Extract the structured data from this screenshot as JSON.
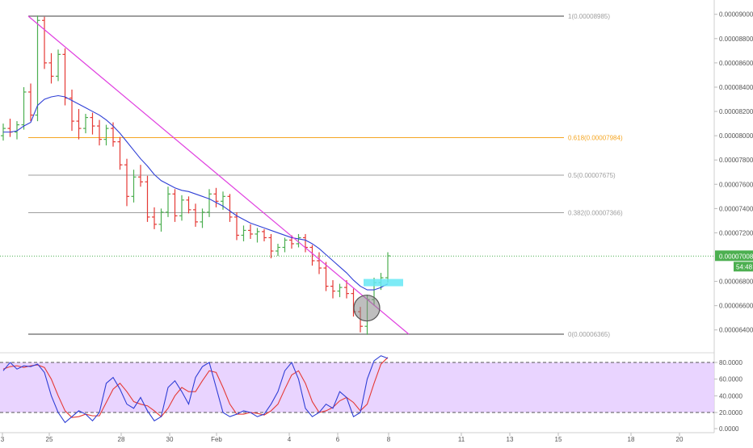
{
  "colors": {
    "up": "#4caf50",
    "down": "#e53935",
    "ma": "#2f3fd6",
    "trendline": "#e040e0",
    "fib": "#9e9e9e",
    "fib_highlight": "#f5a623",
    "price_line": "#4caf50",
    "price_badge": "#4caf50",
    "stoch_k": "#2f3fd6",
    "stoch_d": "#e53935",
    "stoch_band": "#e5ccff",
    "highlight_box": "#66e8f5",
    "circle": "#888888"
  },
  "price_axis": {
    "ticks": [
      "0.00009000",
      "0.00008800",
      "0.00008600",
      "0.00008400",
      "0.00008200",
      "0.00008000",
      "0.00007800",
      "0.00007600",
      "0.00007400",
      "0.00007200",
      "0.00006800",
      "0.00006600",
      "0.00006400"
    ],
    "current_price": "0.00007008",
    "countdown": "54:48"
  },
  "stoch_axis": {
    "ticks": [
      "80.0000",
      "60.0000",
      "40.0000",
      "20.0000",
      "0.0000"
    ]
  },
  "time_axis": {
    "labels": [
      "3",
      "25",
      "28",
      "30",
      "Feb",
      "4",
      "6",
      "8",
      "11",
      "13",
      "15",
      "18",
      "20"
    ]
  },
  "fib_levels": [
    {
      "ratio": 1,
      "label": "1(0.00008985)"
    },
    {
      "ratio": 0.618,
      "label": "0.618(0.00007984)"
    },
    {
      "ratio": 0.5,
      "label": "0.5(0.00007675)"
    },
    {
      "ratio": 0.382,
      "label": "0.382(0.00007366)"
    },
    {
      "ratio": 0,
      "label": "0(0.00006365)"
    }
  ],
  "chart_data": {
    "type": "candlestick",
    "series": [
      {
        "values": [
          [
            8e-05,
            8.1e-05,
            7.96e-05,
            8.06e-05
          ],
          [
            8.06e-05,
            8.14e-05,
            7.99e-05,
            8.03e-05
          ],
          [
            8.03e-05,
            8.12e-05,
            7.97e-05,
            8.09e-05
          ],
          [
            8.09e-05,
            8.4e-05,
            8.05e-05,
            8.36e-05
          ],
          [
            8.36e-05,
            8.43e-05,
            8.12e-05,
            8.17e-05
          ],
          [
            8.17e-05,
            8.99e-05,
            8.12e-05,
            8.95e-05
          ],
          [
            8.95e-05,
            8.98e-05,
            8.55e-05,
            8.6e-05
          ],
          [
            8.6e-05,
            8.68e-05,
            8.43e-05,
            8.49e-05
          ],
          [
            8.49e-05,
            8.71e-05,
            8.45e-05,
            8.67e-05
          ],
          [
            8.67e-05,
            8.72e-05,
            8.25e-05,
            8.31e-05
          ],
          [
            8.31e-05,
            8.38e-05,
            8.04e-05,
            8.12e-05
          ],
          [
            8.12e-05,
            8.22e-05,
            7.97e-05,
            8.06e-05
          ],
          [
            8.06e-05,
            8.18e-05,
            8.02e-05,
            8.15e-05
          ],
          [
            8.15e-05,
            8.19e-05,
            8.01e-05,
            8.08e-05
          ],
          [
            8.08e-05,
            8.13e-05,
            7.92e-05,
            7.97e-05
          ],
          [
            7.97e-05,
            8.09e-05,
            7.92e-05,
            8.06e-05
          ],
          [
            8.06e-05,
            8.11e-05,
            7.91e-05,
            7.95e-05
          ],
          [
            7.95e-05,
            7.99e-05,
            7.72e-05,
            7.76e-05
          ],
          [
            7.76e-05,
            7.81e-05,
            7.42e-05,
            7.5e-05
          ],
          [
            7.5e-05,
            7.72e-05,
            7.45e-05,
            7.66e-05
          ],
          [
            7.66e-05,
            7.76e-05,
            7.58e-05,
            7.62e-05
          ],
          [
            7.62e-05,
            7.67e-05,
            7.29e-05,
            7.33e-05
          ],
          [
            7.33e-05,
            7.41e-05,
            7.23e-05,
            7.27e-05
          ],
          [
            7.27e-05,
            7.4e-05,
            7.21e-05,
            7.37e-05
          ],
          [
            7.37e-05,
            7.58e-05,
            7.33e-05,
            7.52e-05
          ],
          [
            7.52e-05,
            7.56e-05,
            7.29e-05,
            7.34e-05
          ],
          [
            7.34e-05,
            7.51e-05,
            7.3e-05,
            7.47e-05
          ],
          [
            7.47e-05,
            7.5e-05,
            7.36e-05,
            7.39e-05
          ],
          [
            7.39e-05,
            7.44e-05,
            7.25e-05,
            7.29e-05
          ],
          [
            7.29e-05,
            7.4e-05,
            7.24e-05,
            7.37e-05
          ],
          [
            7.37e-05,
            7.56e-05,
            7.33e-05,
            7.52e-05
          ],
          [
            7.52e-05,
            7.57e-05,
            7.41e-05,
            7.46e-05
          ],
          [
            7.46e-05,
            7.54e-05,
            7.39e-05,
            7.5e-05
          ],
          [
            7.5e-05,
            7.52e-05,
            7.29e-05,
            7.33e-05
          ],
          [
            7.33e-05,
            7.37e-05,
            7.14e-05,
            7.18e-05
          ],
          [
            7.18e-05,
            7.26e-05,
            7.13e-05,
            7.22e-05
          ],
          [
            7.22e-05,
            7.27e-05,
            7.15e-05,
            7.19e-05
          ],
          [
            7.19e-05,
            7.24e-05,
            7.12e-05,
            7.21e-05
          ],
          [
            7.21e-05,
            7.23e-05,
            7.13e-05,
            7.16e-05
          ],
          [
            7.16e-05,
            7.19e-05,
            6.99e-05,
            7.05e-05
          ],
          [
            7.05e-05,
            7.11e-05,
            7.01e-05,
            7.08e-05
          ],
          [
            7.08e-05,
            7.16e-05,
            7.04e-05,
            7.14e-05
          ],
          [
            7.14e-05,
            7.18e-05,
            7.07e-05,
            7.11e-05
          ],
          [
            7.11e-05,
            7.19e-05,
            7.08e-05,
            7.16e-05
          ],
          [
            7.16e-05,
            7.19e-05,
            7.04e-05,
            7.08e-05
          ],
          [
            7.08e-05,
            7.1e-05,
            6.93e-05,
            6.97e-05
          ],
          [
            6.97e-05,
            7.04e-05,
            6.86e-05,
            6.91e-05
          ],
          [
            6.91e-05,
            6.96e-05,
            6.72e-05,
            6.76e-05
          ],
          [
            6.76e-05,
            6.81e-05,
            6.66e-05,
            6.72e-05
          ],
          [
            6.72e-05,
            6.78e-05,
            6.67e-05,
            6.75e-05
          ],
          [
            6.75e-05,
            6.81e-05,
            6.66e-05,
            6.7e-05
          ],
          [
            6.7e-05,
            6.74e-05,
            6.51e-05,
            6.55e-05
          ],
          [
            6.55e-05,
            6.59e-05,
            6.38e-05,
            6.43e-05
          ],
          [
            6.43e-05,
            6.69e-05,
            6.36e-05,
            6.65e-05
          ],
          [
            6.65e-05,
            6.83e-05,
            6.6e-05,
            6.79e-05
          ],
          [
            6.79e-05,
            6.87e-05,
            6.73e-05,
            6.83e-05
          ],
          [
            6.83e-05,
            7.04e-05,
            6.79e-05,
            7.01e-05
          ]
        ]
      }
    ],
    "moving_average": [
      8.03e-05,
      8.03e-05,
      8.04e-05,
      8.08e-05,
      8.11e-05,
      8.25e-05,
      8.3e-05,
      8.32e-05,
      8.33e-05,
      8.32e-05,
      8.29e-05,
      8.26e-05,
      8.23e-05,
      8.2e-05,
      8.17e-05,
      8.13e-05,
      8.08e-05,
      8.02e-05,
      7.95e-05,
      7.88e-05,
      7.81e-05,
      7.75e-05,
      7.68e-05,
      7.63e-05,
      7.6e-05,
      7.57e-05,
      7.55e-05,
      7.54e-05,
      7.52e-05,
      7.5e-05,
      7.48e-05,
      7.45e-05,
      7.42e-05,
      7.38e-05,
      7.34e-05,
      7.31e-05,
      7.28e-05,
      7.26e-05,
      7.24e-05,
      7.22e-05,
      7.2e-05,
      7.18e-05,
      7.16e-05,
      7.15e-05,
      7.14e-05,
      7.11e-05,
      7.07e-05,
      7.02e-05,
      6.97e-05,
      6.92e-05,
      6.87e-05,
      6.81e-05,
      6.76e-05,
      6.73e-05,
      6.73e-05,
      6.75e-05,
      6.78e-05
    ],
    "stoch_k": [
      70,
      80,
      72,
      76,
      75,
      78,
      68,
      40,
      20,
      8,
      15,
      22,
      18,
      10,
      20,
      55,
      62,
      48,
      30,
      25,
      38,
      22,
      10,
      15,
      50,
      58,
      45,
      30,
      62,
      75,
      80,
      50,
      20,
      15,
      18,
      22,
      20,
      15,
      18,
      30,
      45,
      70,
      80,
      60,
      25,
      15,
      20,
      30,
      25,
      45,
      38,
      15,
      20,
      60,
      82,
      88,
      85
    ],
    "stoch_d": [
      72,
      75,
      76,
      74,
      76,
      77,
      74,
      60,
      40,
      22,
      14,
      15,
      18,
      16,
      16,
      32,
      48,
      55,
      45,
      33,
      30,
      28,
      22,
      15,
      25,
      40,
      50,
      45,
      45,
      58,
      70,
      68,
      50,
      30,
      18,
      18,
      20,
      19,
      17,
      22,
      30,
      48,
      65,
      70,
      55,
      33,
      20,
      22,
      26,
      34,
      38,
      32,
      22,
      30,
      55,
      78,
      86
    ],
    "ylim": [
      6.34e-05,
      9.02e-05
    ],
    "stoch_ylim": [
      0,
      100
    ]
  }
}
